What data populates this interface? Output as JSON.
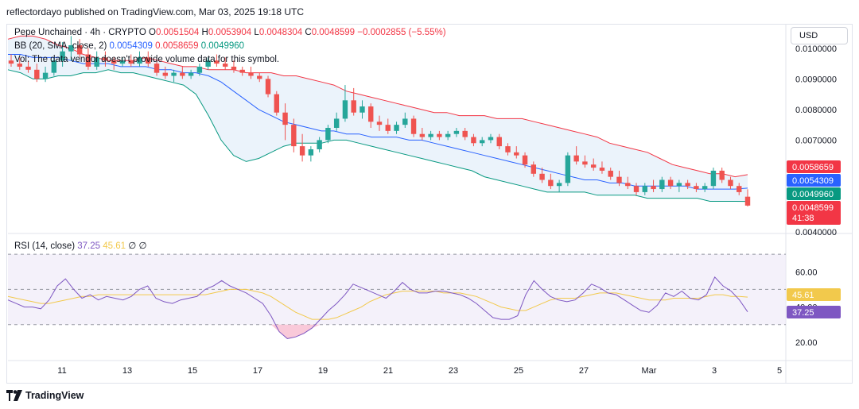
{
  "header": {
    "publisher_text": "reflectordayo published on TradingView.com, Mar 03, 2025 19:18 UTC"
  },
  "legend": {
    "symbol": "Pepe Unchained · 4h · CRYPTO",
    "o_label": "O",
    "o_value": "0.0051504",
    "h_label": "H",
    "h_value": "0.0053904",
    "l_label": "L",
    "l_value": "0.0048304",
    "c_label": "C",
    "c_value": "0.0048599",
    "change": "−0.0002855 (−5.55%)",
    "bb_label": "BB (20, SMA, close, 2)",
    "bb_basis": "0.0054309",
    "bb_upper": "0.0058659",
    "bb_lower": "0.0049960",
    "vol_text": "Vol: The data vendor doesn't provide volume data for this symbol.",
    "rsi_label": "RSI (14, close)",
    "rsi_value": "37.25",
    "rsi_ma": "45.61",
    "rsi_div1": "∅",
    "rsi_div2": "∅"
  },
  "currency_button": "USD",
  "price_axis_labels": [
    "0.0100000",
    "0.0090000",
    "0.0080000",
    "0.0070000",
    "0.0040000"
  ],
  "price_tags": {
    "upper": {
      "text": "0.0058659",
      "color": "#f23645"
    },
    "basis": {
      "text": "0.0054309",
      "color": "#2962ff"
    },
    "lower": {
      "text": "0.0049960",
      "color": "#089981"
    },
    "last": {
      "text": "0.0048599",
      "color": "#f23645"
    },
    "countdown": "41:38"
  },
  "rsi_axis_labels": [
    "60.00",
    "40.00",
    "20.00"
  ],
  "rsi_tags": {
    "ma": {
      "text": "45.61",
      "color": "#f2c94c"
    },
    "rsi": {
      "text": "37.25",
      "color": "#7e57c2"
    }
  },
  "time_axis_labels": [
    "11",
    "13",
    "15",
    "17",
    "19",
    "21",
    "23",
    "25",
    "27",
    "Mar",
    "3",
    "5"
  ],
  "footer": {
    "brand": "TradingView"
  },
  "colors": {
    "up": "#26a69a",
    "down": "#ef5350",
    "bb_upper": "#f23645",
    "bb_basis": "#2962ff",
    "bb_lower": "#089981",
    "bb_fill": "#e3eef9",
    "rsi_line": "#7e57c2",
    "rsi_ma": "#f2c94c",
    "rsi_band": "#ede7f6"
  },
  "chart_data": {
    "type": "candlestick",
    "title": "Pepe Unchained · 4h · CRYPTO",
    "price_ylim": [
      0.004,
      0.0108
    ],
    "rsi_ylim": [
      10,
      80
    ],
    "x_ticks": [
      "11",
      "13",
      "15",
      "17",
      "19",
      "21",
      "23",
      "25",
      "27",
      "Mar",
      "3",
      "5"
    ],
    "candles": [
      [
        0.0096,
        0.0098,
        0.0094,
        0.0095
      ],
      [
        0.0095,
        0.0097,
        0.0093,
        0.0094
      ],
      [
        0.0094,
        0.0096,
        0.0092,
        0.0093
      ],
      [
        0.0093,
        0.0095,
        0.0089,
        0.009
      ],
      [
        0.009,
        0.0094,
        0.0089,
        0.0092
      ],
      [
        0.0092,
        0.0097,
        0.0091,
        0.0096
      ],
      [
        0.0096,
        0.0102,
        0.0094,
        0.0099
      ],
      [
        0.0099,
        0.0104,
        0.0096,
        0.0101
      ],
      [
        0.0101,
        0.0103,
        0.0097,
        0.0098
      ],
      [
        0.0098,
        0.01,
        0.0093,
        0.0094
      ],
      [
        0.0094,
        0.0099,
        0.0093,
        0.0097
      ],
      [
        0.0097,
        0.0099,
        0.0094,
        0.0096
      ],
      [
        0.0096,
        0.0097,
        0.0093,
        0.0095
      ],
      [
        0.0095,
        0.0097,
        0.0094,
        0.0096
      ],
      [
        0.0096,
        0.0098,
        0.0094,
        0.0095
      ],
      [
        0.0095,
        0.0099,
        0.0094,
        0.0097
      ],
      [
        0.0097,
        0.0099,
        0.0094,
        0.0095
      ],
      [
        0.0095,
        0.0096,
        0.0091,
        0.0092
      ],
      [
        0.0092,
        0.0094,
        0.009,
        0.0091
      ],
      [
        0.0091,
        0.0093,
        0.0089,
        0.0092
      ],
      [
        0.0092,
        0.0094,
        0.009,
        0.0091
      ],
      [
        0.0091,
        0.0093,
        0.009,
        0.0092
      ],
      [
        0.0092,
        0.0095,
        0.0091,
        0.0094
      ],
      [
        0.0094,
        0.0097,
        0.0093,
        0.0096
      ],
      [
        0.0096,
        0.0098,
        0.0094,
        0.0095
      ],
      [
        0.0095,
        0.0097,
        0.0093,
        0.0094
      ],
      [
        0.0094,
        0.0096,
        0.0092,
        0.0093
      ],
      [
        0.0093,
        0.0094,
        0.0091,
        0.0092
      ],
      [
        0.0092,
        0.0094,
        0.009,
        0.0091
      ],
      [
        0.0091,
        0.0092,
        0.0089,
        0.009
      ],
      [
        0.009,
        0.0091,
        0.0084,
        0.0085
      ],
      [
        0.0085,
        0.0086,
        0.0078,
        0.0079
      ],
      [
        0.0079,
        0.0082,
        0.007,
        0.0075
      ],
      [
        0.0075,
        0.0077,
        0.0066,
        0.0068
      ],
      [
        0.0068,
        0.0072,
        0.0063,
        0.0065
      ],
      [
        0.0065,
        0.0068,
        0.0063,
        0.0067
      ],
      [
        0.0067,
        0.0071,
        0.0066,
        0.007
      ],
      [
        0.007,
        0.0075,
        0.0069,
        0.0074
      ],
      [
        0.0074,
        0.0079,
        0.0073,
        0.0077
      ],
      [
        0.0077,
        0.0088,
        0.0076,
        0.0083
      ],
      [
        0.0083,
        0.0087,
        0.0078,
        0.0079
      ],
      [
        0.0079,
        0.0083,
        0.0077,
        0.0081
      ],
      [
        0.0081,
        0.0082,
        0.0074,
        0.0076
      ],
      [
        0.0076,
        0.0078,
        0.0073,
        0.0075
      ],
      [
        0.0075,
        0.0077,
        0.0072,
        0.0073
      ],
      [
        0.0073,
        0.0076,
        0.0072,
        0.0075
      ],
      [
        0.0075,
        0.0079,
        0.0074,
        0.0077
      ],
      [
        0.0077,
        0.0078,
        0.0071,
        0.0072
      ],
      [
        0.0072,
        0.0074,
        0.007,
        0.0071
      ],
      [
        0.0071,
        0.0073,
        0.007,
        0.0072
      ],
      [
        0.0072,
        0.0073,
        0.007,
        0.0071
      ],
      [
        0.0071,
        0.0073,
        0.007,
        0.0072
      ],
      [
        0.0072,
        0.0074,
        0.0071,
        0.0073
      ],
      [
        0.0073,
        0.0074,
        0.007,
        0.0071
      ],
      [
        0.0071,
        0.0072,
        0.0068,
        0.0069
      ],
      [
        0.0069,
        0.0071,
        0.0068,
        0.007
      ],
      [
        0.007,
        0.0072,
        0.0069,
        0.0071
      ],
      [
        0.0071,
        0.0072,
        0.0067,
        0.0068
      ],
      [
        0.0068,
        0.0069,
        0.0065,
        0.0066
      ],
      [
        0.0066,
        0.0068,
        0.0064,
        0.0065
      ],
      [
        0.0065,
        0.0066,
        0.0061,
        0.0062
      ],
      [
        0.0062,
        0.0063,
        0.0058,
        0.0059
      ],
      [
        0.0059,
        0.0061,
        0.0056,
        0.0057
      ],
      [
        0.0057,
        0.0059,
        0.0054,
        0.0055
      ],
      [
        0.0055,
        0.0057,
        0.0053,
        0.0056
      ],
      [
        0.0056,
        0.0066,
        0.0055,
        0.0065
      ],
      [
        0.0065,
        0.0068,
        0.0062,
        0.0063
      ],
      [
        0.0063,
        0.0065,
        0.0061,
        0.0062
      ],
      [
        0.0062,
        0.0064,
        0.006,
        0.0061
      ],
      [
        0.0061,
        0.0063,
        0.0059,
        0.006
      ],
      [
        0.006,
        0.0061,
        0.0057,
        0.0058
      ],
      [
        0.0058,
        0.006,
        0.0055,
        0.0056
      ],
      [
        0.0056,
        0.0058,
        0.0054,
        0.0055
      ],
      [
        0.0055,
        0.0056,
        0.0052,
        0.0053
      ],
      [
        0.0053,
        0.0056,
        0.0052,
        0.0055
      ],
      [
        0.0055,
        0.0057,
        0.0053,
        0.0054
      ],
      [
        0.0054,
        0.0058,
        0.0053,
        0.0057
      ],
      [
        0.0057,
        0.0058,
        0.0054,
        0.0055
      ],
      [
        0.0055,
        0.0057,
        0.0053,
        0.0056
      ],
      [
        0.0056,
        0.0057,
        0.0054,
        0.0055
      ],
      [
        0.0055,
        0.0056,
        0.0053,
        0.0054
      ],
      [
        0.0054,
        0.0056,
        0.0053,
        0.0055
      ],
      [
        0.0055,
        0.0061,
        0.0054,
        0.006
      ],
      [
        0.006,
        0.0061,
        0.0056,
        0.0057
      ],
      [
        0.0057,
        0.0058,
        0.0054,
        0.0055
      ],
      [
        0.0055,
        0.0056,
        0.0052,
        0.0053
      ],
      [
        0.0051504,
        0.0053904,
        0.0048304,
        0.0048599
      ]
    ],
    "bb_upper": [
      0.0103,
      0.0104,
      0.0104,
      0.0103,
      0.0101,
      0.01,
      0.0098,
      0.0097,
      0.0096,
      0.0096,
      0.0096,
      0.0097,
      0.0096,
      0.0095,
      0.0094,
      0.0094,
      0.0093,
      0.0093,
      0.0093,
      0.0092,
      0.0092,
      0.0092,
      0.0091,
      0.0091,
      0.009,
      0.0089,
      0.0088,
      0.0086,
      0.0085,
      0.0084,
      0.0083,
      0.0082,
      0.0081,
      0.008,
      0.0079,
      0.0079,
      0.0078,
      0.0078,
      0.0078,
      0.0077,
      0.0077,
      0.0077,
      0.0076,
      0.0075,
      0.0074,
      0.0073,
      0.0072,
      0.0071,
      0.0069,
      0.0068,
      0.0067,
      0.0066,
      0.0064,
      0.0062,
      0.0061,
      0.006,
      0.0059,
      0.0059,
      0.0058,
      0.00587
    ],
    "bb_basis": [
      0.0098,
      0.0098,
      0.0097,
      0.0097,
      0.0097,
      0.0096,
      0.0095,
      0.0095,
      0.0095,
      0.0094,
      0.0094,
      0.0094,
      0.0093,
      0.0093,
      0.0092,
      0.0092,
      0.0091,
      0.0089,
      0.0086,
      0.0083,
      0.008,
      0.0078,
      0.0076,
      0.0075,
      0.0074,
      0.0073,
      0.0073,
      0.0072,
      0.0072,
      0.0071,
      0.0071,
      0.0071,
      0.007,
      0.007,
      0.0069,
      0.0068,
      0.0067,
      0.0066,
      0.0065,
      0.0064,
      0.0063,
      0.0062,
      0.0061,
      0.006,
      0.0059,
      0.0058,
      0.0057,
      0.0057,
      0.0056,
      0.0056,
      0.0055,
      0.0055,
      0.0055,
      0.0055,
      0.0055,
      0.0054,
      0.0054,
      0.0054,
      0.0054,
      0.00543
    ],
    "bb_lower": [
      0.0093,
      0.0092,
      0.009,
      0.009,
      0.0091,
      0.0091,
      0.0092,
      0.0092,
      0.0093,
      0.0092,
      0.0092,
      0.0091,
      0.009,
      0.0089,
      0.0088,
      0.0085,
      0.0078,
      0.007,
      0.0065,
      0.0063,
      0.0064,
      0.0066,
      0.0068,
      0.0069,
      0.0069,
      0.0069,
      0.007,
      0.007,
      0.0069,
      0.0068,
      0.0067,
      0.0066,
      0.0065,
      0.0064,
      0.0063,
      0.0062,
      0.0061,
      0.006,
      0.0058,
      0.0057,
      0.0056,
      0.0055,
      0.0054,
      0.0053,
      0.0053,
      0.0053,
      0.0053,
      0.0052,
      0.0052,
      0.0052,
      0.0052,
      0.0051,
      0.0051,
      0.0051,
      0.0051,
      0.0051,
      0.005,
      0.005,
      0.005,
      0.004996
    ],
    "rsi": [
      44,
      42,
      40,
      40,
      39,
      44,
      52,
      56,
      50,
      45,
      47,
      44,
      46,
      45,
      44,
      46,
      50,
      52,
      45,
      43,
      42,
      44,
      45,
      46,
      50,
      52,
      55,
      52,
      50,
      48,
      45,
      42,
      35,
      26,
      22,
      23,
      25,
      28,
      33,
      38,
      42,
      47,
      53,
      51,
      49,
      47,
      45,
      49,
      54,
      50,
      48,
      48,
      49,
      49,
      48,
      47,
      45,
      42,
      38,
      34,
      33,
      33,
      35,
      47,
      55,
      50,
      46,
      44,
      43,
      44,
      48,
      53,
      51,
      48,
      47,
      44,
      41,
      38,
      37,
      41,
      48,
      46,
      49,
      45,
      44,
      47,
      57,
      52,
      49,
      44,
      37.25
    ],
    "rsi_ma": [
      46,
      45,
      44,
      43,
      42,
      42,
      43,
      44,
      45,
      46,
      46,
      47,
      47,
      47,
      47,
      47,
      47,
      47,
      47,
      47,
      47,
      47,
      47,
      47,
      47,
      48,
      49,
      50,
      50,
      50,
      49,
      48,
      46,
      43,
      40,
      37,
      35,
      33,
      33,
      33,
      34,
      36,
      38,
      40,
      43,
      45,
      47,
      48,
      49,
      49,
      49,
      49,
      49,
      48,
      48,
      48,
      47,
      46,
      44,
      42,
      40,
      39,
      38,
      38,
      40,
      42,
      44,
      45,
      45,
      45,
      46,
      47,
      48,
      48,
      48,
      47,
      46,
      45,
      44,
      44,
      44,
      45,
      45,
      45,
      45,
      46,
      47,
      47,
      46,
      46,
      45.61
    ],
    "rsi_levels": {
      "upper": 70,
      "middle": 50,
      "lower": 30
    }
  }
}
